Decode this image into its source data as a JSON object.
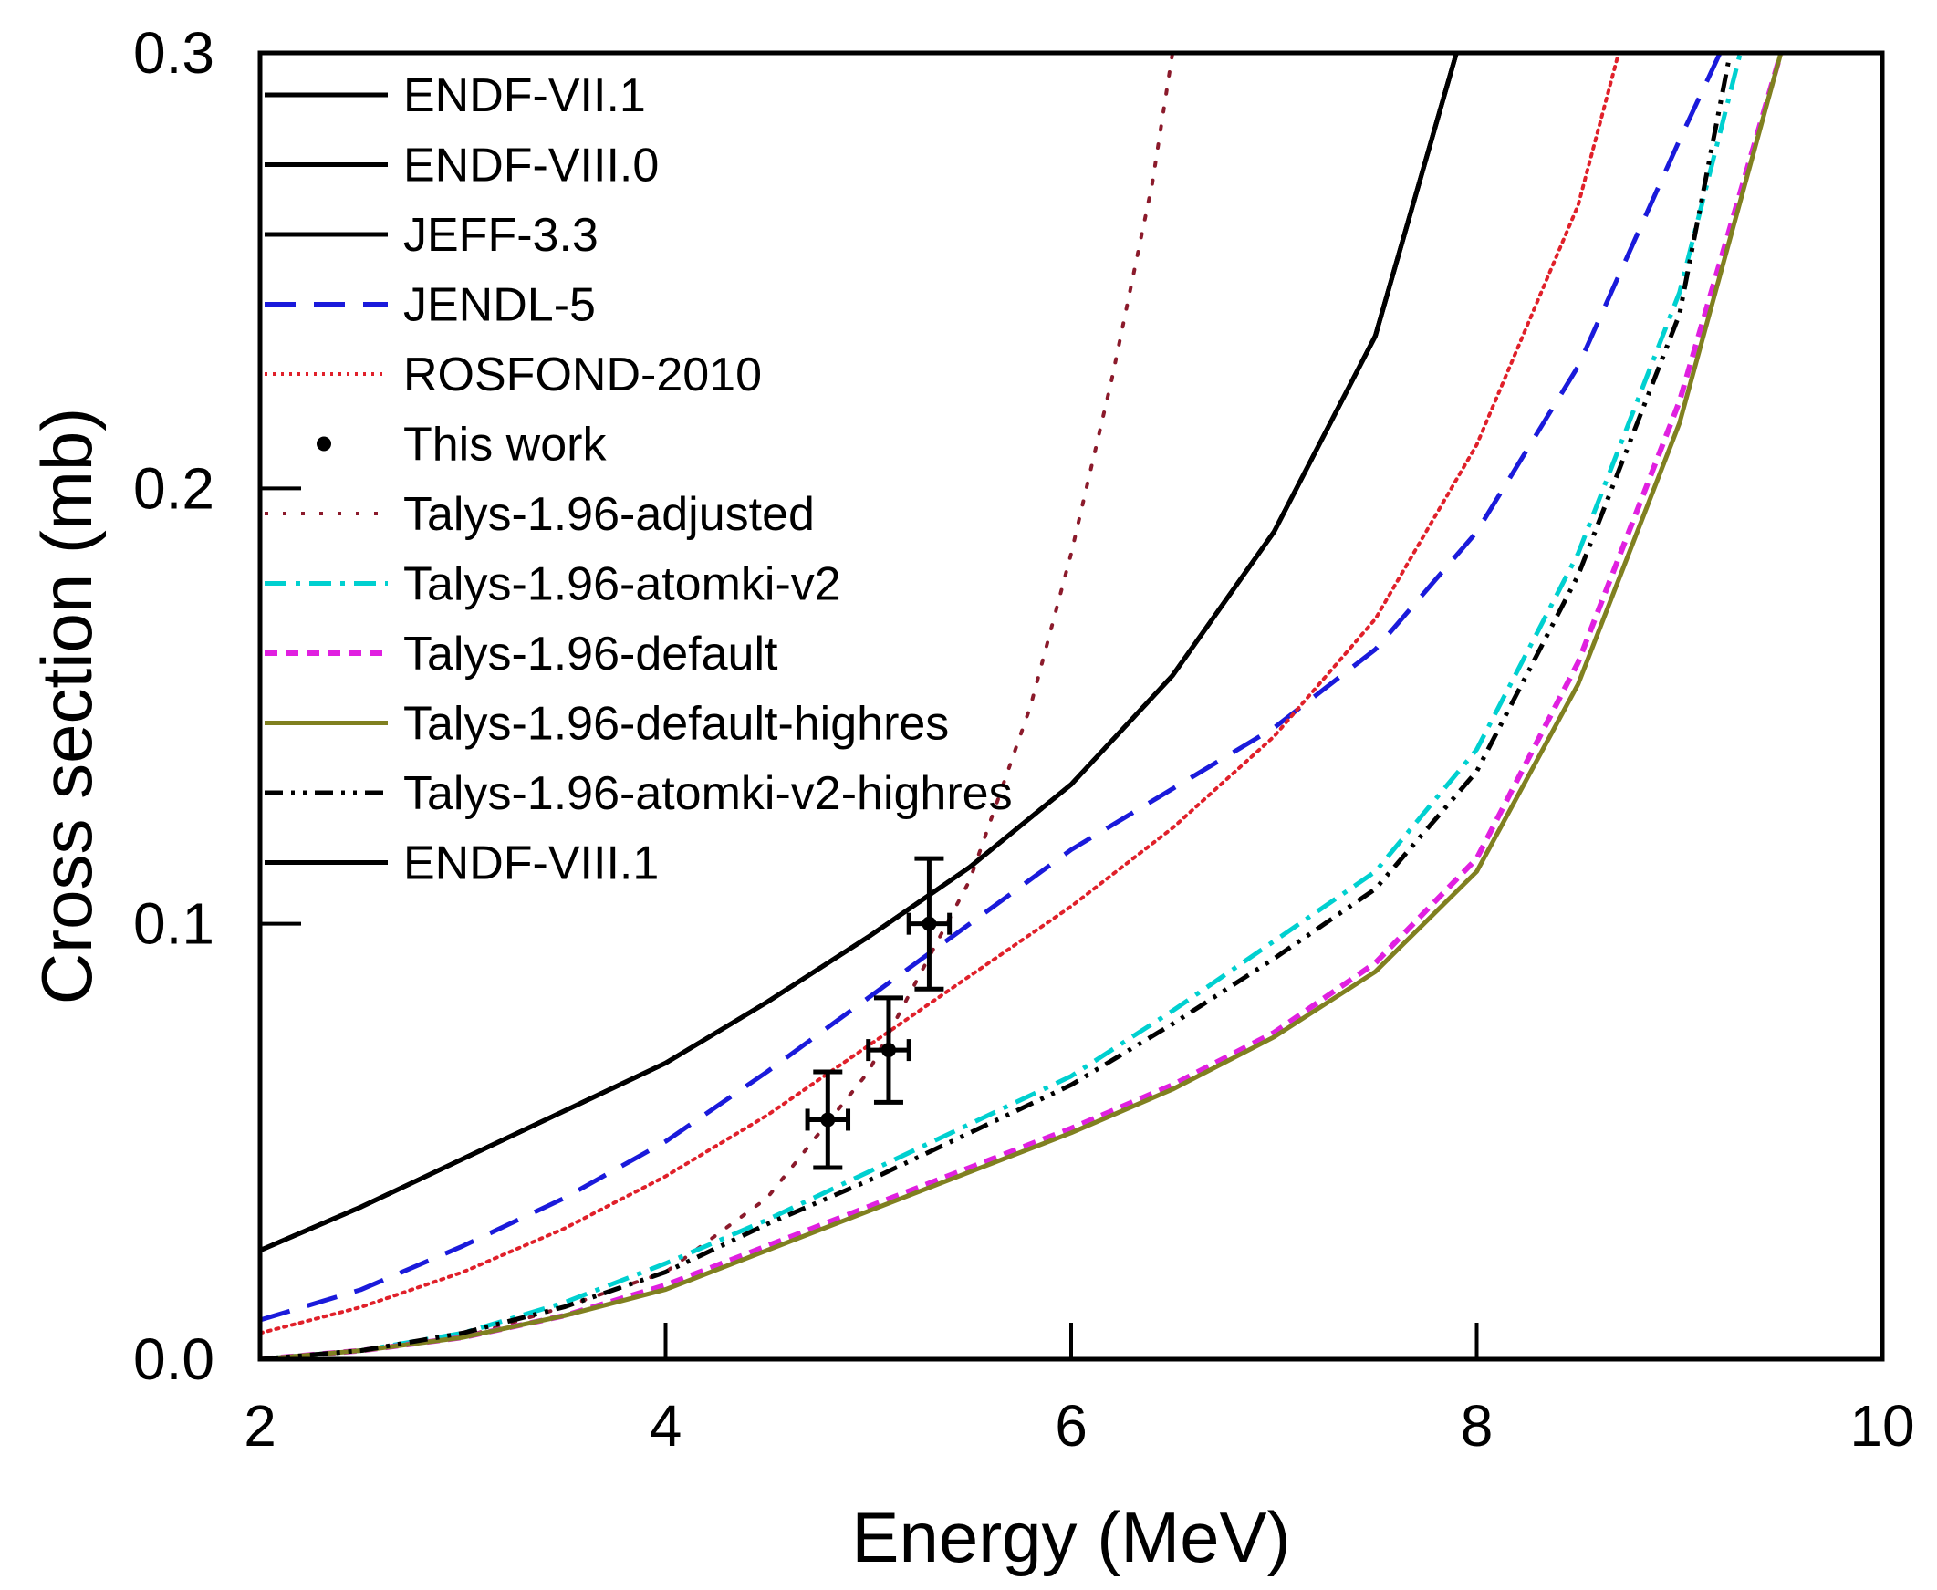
{
  "chart_data": {
    "type": "line",
    "xlabel": "Energy (MeV)",
    "ylabel": "Cross section (mb)",
    "xlim": [
      2,
      10
    ],
    "ylim": [
      0,
      0.3
    ],
    "x_ticks": [
      "2",
      "4",
      "6",
      "8",
      "10"
    ],
    "y_ticks": [
      "0.0",
      "0.1",
      "0.2",
      "0.3"
    ],
    "legend_position": "top-left",
    "series": [
      {
        "name": "ENDF-VII.1",
        "color": "#000000",
        "dash": "solid",
        "x": [
          2,
          2.5,
          3,
          3.5,
          4,
          4.5,
          5,
          5.5,
          6,
          6.5,
          7,
          7.5,
          7.9
        ],
        "y": [
          0.025,
          0.035,
          0.046,
          0.057,
          0.068,
          0.082,
          0.097,
          0.113,
          0.132,
          0.157,
          0.19,
          0.235,
          0.3
        ]
      },
      {
        "name": "ENDF-VIII.0",
        "color": "#000000",
        "dash": "solid",
        "x": [
          2,
          2.5,
          3,
          3.5,
          4,
          4.5,
          5,
          5.5,
          6,
          6.5,
          7,
          7.5,
          7.9
        ],
        "y": [
          0.025,
          0.035,
          0.046,
          0.057,
          0.068,
          0.082,
          0.097,
          0.113,
          0.132,
          0.157,
          0.19,
          0.235,
          0.3
        ]
      },
      {
        "name": "JEFF-3.3",
        "color": "#000000",
        "dash": "solid",
        "x": [
          2,
          2.5,
          3,
          3.5,
          4,
          4.5,
          5,
          5.5,
          6,
          6.5,
          7,
          7.5,
          7.9
        ],
        "y": [
          0.025,
          0.035,
          0.046,
          0.057,
          0.068,
          0.082,
          0.097,
          0.113,
          0.132,
          0.157,
          0.19,
          0.235,
          0.3
        ]
      },
      {
        "name": "JENDL-5",
        "color": "#1a1adb",
        "dash": "long-dash",
        "x": [
          2,
          2.5,
          3,
          3.5,
          4,
          4.5,
          5,
          5.5,
          6,
          6.5,
          7,
          7.5,
          8,
          8.5,
          9,
          9.2
        ],
        "y": [
          0.009,
          0.016,
          0.026,
          0.037,
          0.05,
          0.066,
          0.083,
          0.1,
          0.117,
          0.131,
          0.145,
          0.163,
          0.19,
          0.228,
          0.28,
          0.3
        ]
      },
      {
        "name": "ROSFOND-2010",
        "color": "#e0202a",
        "dash": "dotted",
        "x": [
          2,
          2.5,
          3,
          3.5,
          4,
          4.5,
          5,
          5.5,
          6,
          6.5,
          7,
          7.5,
          8,
          8.5,
          8.7
        ],
        "y": [
          0.006,
          0.012,
          0.02,
          0.03,
          0.042,
          0.056,
          0.072,
          0.088,
          0.104,
          0.122,
          0.143,
          0.17,
          0.21,
          0.265,
          0.3
        ]
      },
      {
        "name": "This work",
        "color": "#000000",
        "marker": true,
        "points": [
          {
            "x": 4.8,
            "y": 0.055,
            "xerr": 0.1,
            "yerr": 0.011
          },
          {
            "x": 5.1,
            "y": 0.071,
            "xerr": 0.1,
            "yerr": 0.012
          },
          {
            "x": 5.3,
            "y": 0.1,
            "xerr": 0.1,
            "yerr": 0.015
          }
        ]
      },
      {
        "name": "Talys-1.96-adjusted",
        "color": "#8b1a2b",
        "dash": "sparse-dot",
        "x": [
          2,
          2.5,
          3,
          3.5,
          4,
          4.5,
          5,
          5.5,
          5.8,
          6,
          6.2,
          6.4,
          6.5
        ],
        "y": [
          0.0,
          0.002,
          0.005,
          0.012,
          0.02,
          0.037,
          0.066,
          0.11,
          0.15,
          0.185,
          0.225,
          0.27,
          0.3
        ]
      },
      {
        "name": "Talys-1.96-atomki-v2",
        "color": "#00d0d0",
        "dash": "dash-dot",
        "x": [
          2,
          2.5,
          3,
          3.5,
          4,
          4.5,
          5,
          5.5,
          6,
          6.5,
          7,
          7.5,
          8,
          8.5,
          9,
          9.3
        ],
        "y": [
          0.0,
          0.002,
          0.006,
          0.013,
          0.022,
          0.032,
          0.043,
          0.054,
          0.065,
          0.08,
          0.096,
          0.112,
          0.14,
          0.185,
          0.245,
          0.3
        ]
      },
      {
        "name": "Talys-1.96-default",
        "color": "#e020e0",
        "dash": "short-dash",
        "x": [
          2,
          2.5,
          3,
          3.5,
          4,
          4.5,
          5,
          5.5,
          6,
          6.5,
          7,
          7.5,
          8,
          8.5,
          9,
          9.5
        ],
        "y": [
          0.0,
          0.002,
          0.005,
          0.01,
          0.017,
          0.026,
          0.035,
          0.044,
          0.053,
          0.063,
          0.075,
          0.091,
          0.115,
          0.16,
          0.22,
          0.3
        ]
      },
      {
        "name": "Talys-1.96-default-highres",
        "color": "#808020",
        "dash": "solid",
        "x": [
          2,
          2.5,
          3,
          3.5,
          4,
          4.5,
          5,
          5.5,
          6,
          6.5,
          7,
          7.5,
          8,
          8.5,
          9,
          9.5
        ],
        "y": [
          0.0,
          0.002,
          0.005,
          0.01,
          0.016,
          0.025,
          0.034,
          0.043,
          0.052,
          0.062,
          0.074,
          0.089,
          0.112,
          0.155,
          0.215,
          0.3
        ]
      },
      {
        "name": "Talys-1.96-atomki-v2-highres",
        "color": "#000000",
        "dash": "dash-dot-dot",
        "x": [
          2,
          2.5,
          3,
          3.5,
          4,
          4.5,
          5,
          5.5,
          6,
          6.5,
          7,
          7.5,
          8,
          8.5,
          9,
          9.25
        ],
        "y": [
          0.0,
          0.002,
          0.006,
          0.012,
          0.02,
          0.031,
          0.041,
          0.052,
          0.063,
          0.077,
          0.092,
          0.108,
          0.135,
          0.18,
          0.24,
          0.3
        ]
      },
      {
        "name": "ENDF-VIII.1",
        "color": "#000000",
        "dash": "solid",
        "x": [
          2,
          2.5,
          3,
          3.5,
          4,
          4.5,
          5,
          5.5,
          6,
          6.5,
          7,
          7.5,
          7.9
        ],
        "y": [
          0.025,
          0.035,
          0.046,
          0.057,
          0.068,
          0.082,
          0.097,
          0.113,
          0.132,
          0.157,
          0.19,
          0.235,
          0.3
        ]
      }
    ]
  }
}
